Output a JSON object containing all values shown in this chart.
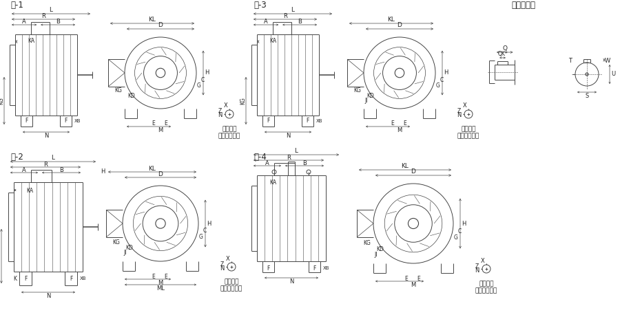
{
  "background_color": "#ffffff",
  "line_color": "#444444",
  "text_color": "#222222",
  "fig1_label": "図-1",
  "fig2_label": "図-2",
  "fig3_label": "図-3",
  "fig4_label": "図-4",
  "figS_label": "軸端寸法図",
  "foot_note": "取付足を\n上側より見て",
  "lw": 0.7
}
